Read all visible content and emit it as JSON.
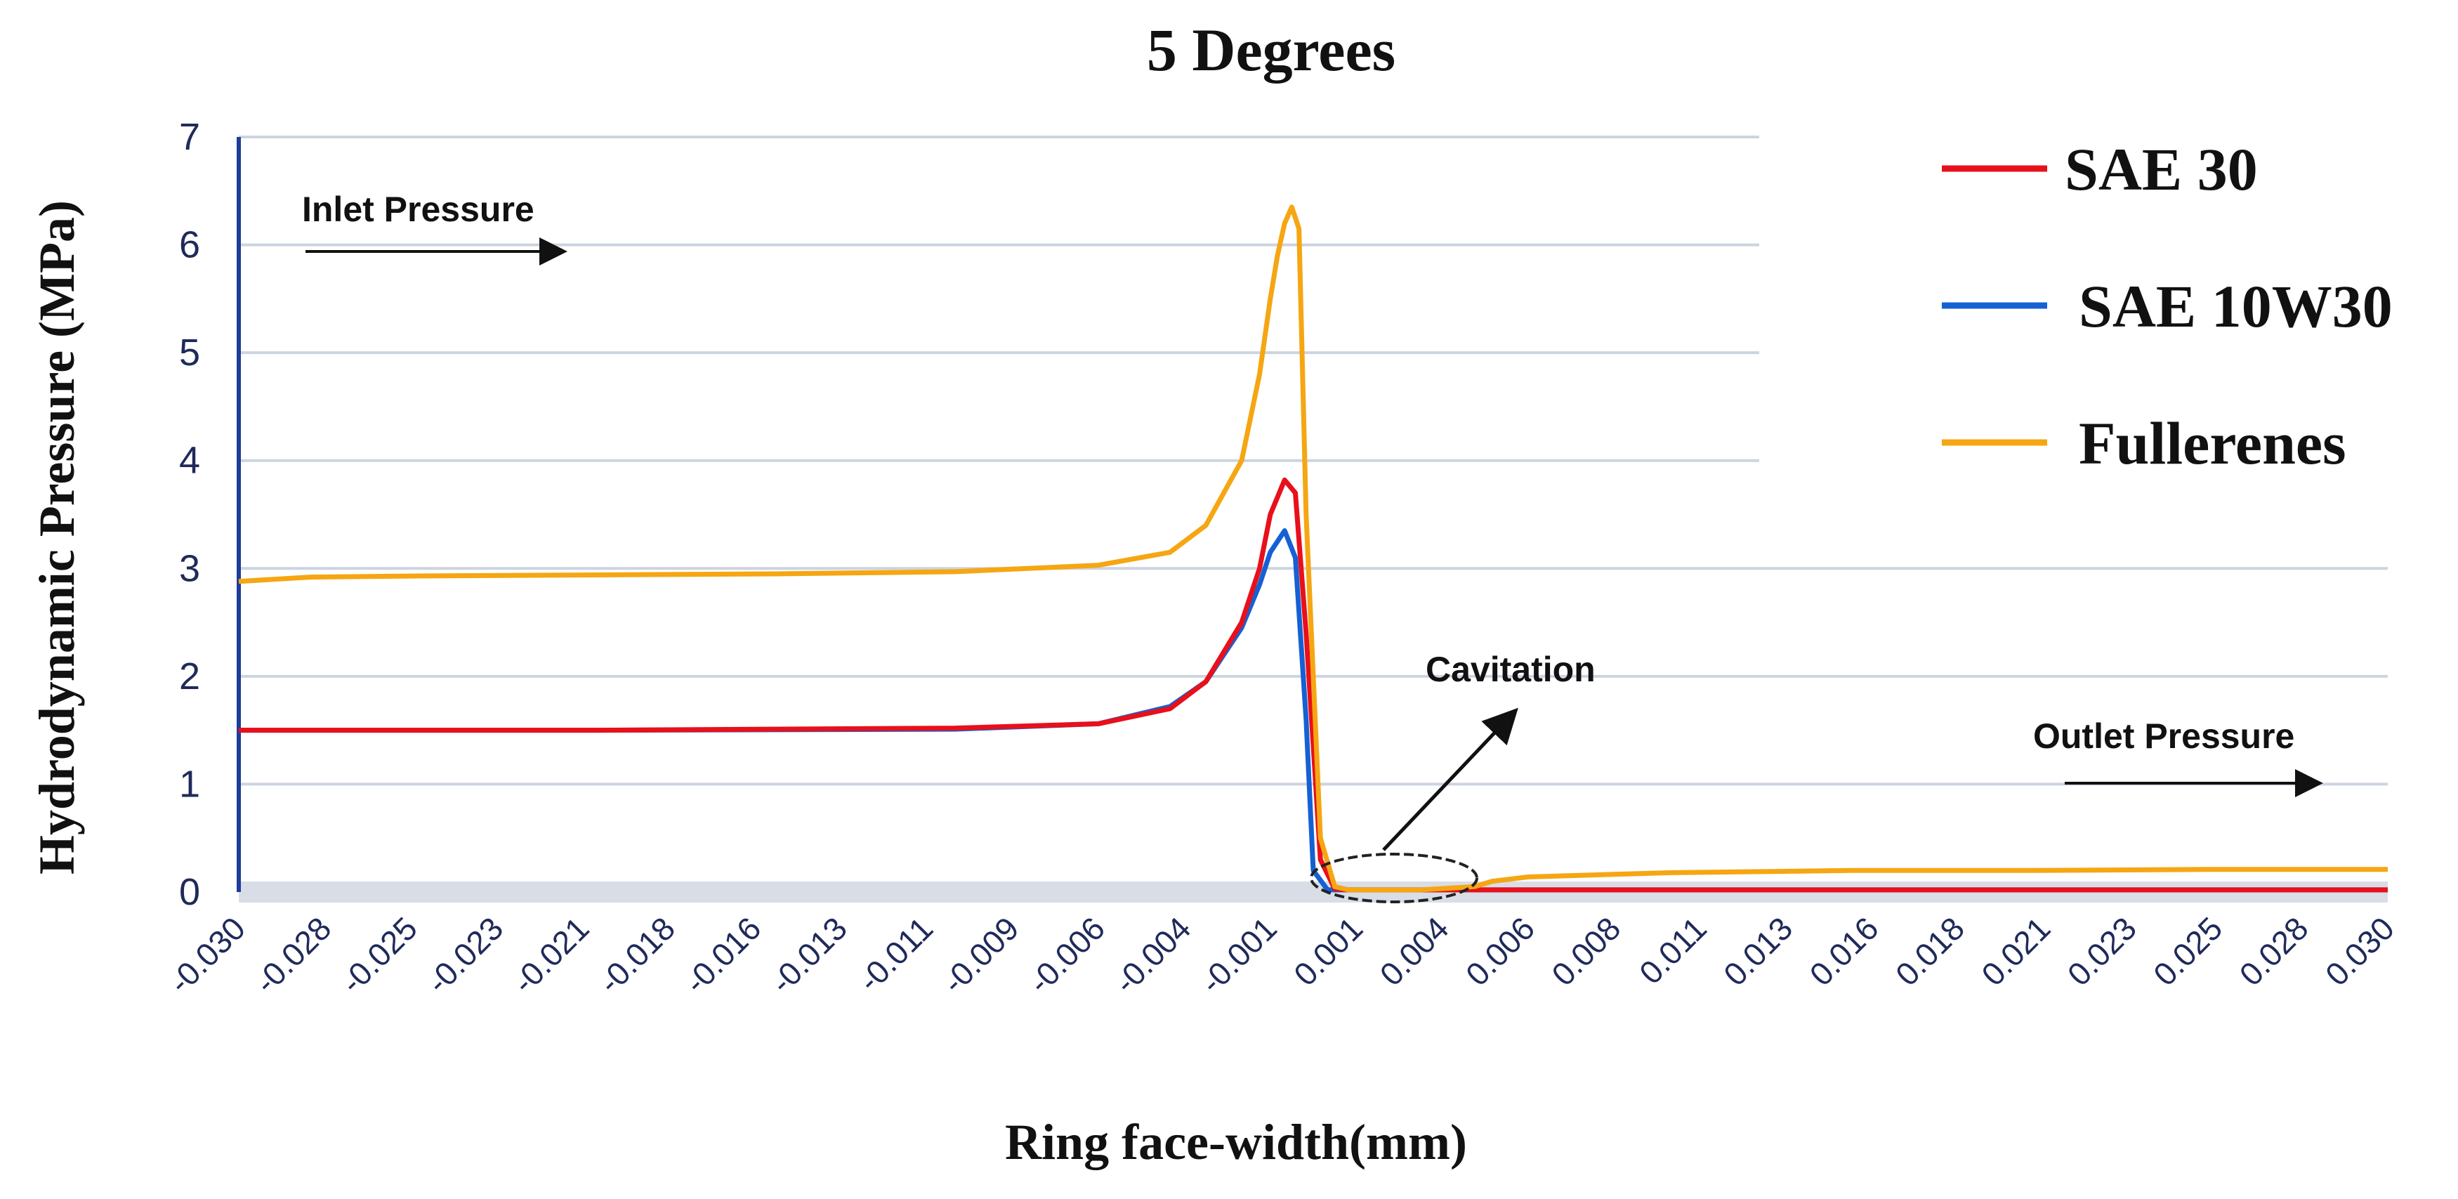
{
  "chart_data": {
    "type": "line",
    "title": "5 Degrees",
    "xlabel": "Ring face-width(mm)",
    "ylabel": "Hydrodynamic Pressure (MPa)",
    "xlim": [
      -0.03,
      0.03
    ],
    "ylim": [
      0,
      7
    ],
    "grid": true,
    "legend_position": "top-right",
    "yticks": [
      "0",
      "1",
      "2",
      "3",
      "4",
      "5",
      "6",
      "7"
    ],
    "xticks": [
      "-0.030",
      "-0.028",
      "-0.025",
      "-0.023",
      "-0.021",
      "-0.018",
      "-0.016",
      "-0.013",
      "-0.011",
      "-0.009",
      "-0.006",
      "-0.004",
      "-0.001",
      "0.001",
      "0.004",
      "0.006",
      "0.008",
      "0.011",
      "0.013",
      "0.016",
      "0.018",
      "0.021",
      "0.023",
      "0.025",
      "0.028",
      "0.030"
    ],
    "series": [
      {
        "name": "SAE 30",
        "color": "#e8101a",
        "x": [
          -0.03,
          -0.02,
          -0.01,
          -0.006,
          -0.004,
          -0.003,
          -0.002,
          -0.0015,
          -0.0012,
          -0.0008,
          -0.0005,
          -0.0002,
          0.0002,
          0.0006,
          0.001,
          0.002,
          0.005,
          0.01,
          0.02,
          0.03
        ],
        "y": [
          1.5,
          1.5,
          1.52,
          1.56,
          1.7,
          1.95,
          2.5,
          3.0,
          3.5,
          3.82,
          3.7,
          2.4,
          0.3,
          0.03,
          0.02,
          0.02,
          0.02,
          0.02,
          0.02,
          0.02
        ]
      },
      {
        "name": "SAE 10W30",
        "color": "#1560d4",
        "x": [
          -0.03,
          -0.02,
          -0.01,
          -0.006,
          -0.004,
          -0.003,
          -0.002,
          -0.0015,
          -0.0012,
          -0.0008,
          -0.0005,
          -0.0002,
          0.0,
          0.0004,
          0.001,
          0.002,
          0.005,
          0.01,
          0.02,
          0.03
        ],
        "y": [
          1.5,
          1.5,
          1.51,
          1.56,
          1.72,
          1.95,
          2.45,
          2.85,
          3.15,
          3.35,
          3.1,
          1.6,
          0.2,
          0.02,
          0.02,
          0.02,
          0.02,
          0.02,
          0.02,
          0.02
        ]
      },
      {
        "name": "Fullerenes",
        "color": "#f5a612",
        "x": [
          -0.03,
          -0.028,
          -0.025,
          -0.02,
          -0.015,
          -0.01,
          -0.006,
          -0.004,
          -0.003,
          -0.002,
          -0.0015,
          -0.0012,
          -0.001,
          -0.0008,
          -0.0006,
          -0.0004,
          -0.0002,
          0.0002,
          0.0006,
          0.001,
          0.003,
          0.0045,
          0.005,
          0.006,
          0.008,
          0.01,
          0.015,
          0.02,
          0.025,
          0.03
        ],
        "y": [
          2.88,
          2.92,
          2.93,
          2.94,
          2.95,
          2.97,
          3.03,
          3.15,
          3.4,
          4.0,
          4.8,
          5.5,
          5.9,
          6.2,
          6.35,
          6.15,
          3.5,
          0.5,
          0.05,
          0.02,
          0.02,
          0.05,
          0.1,
          0.14,
          0.16,
          0.18,
          0.2,
          0.2,
          0.21,
          0.21
        ]
      }
    ],
    "annotations": {
      "inlet": "Inlet Pressure",
      "cavitation": "Cavitation",
      "outlet": "Outlet Pressure"
    }
  }
}
